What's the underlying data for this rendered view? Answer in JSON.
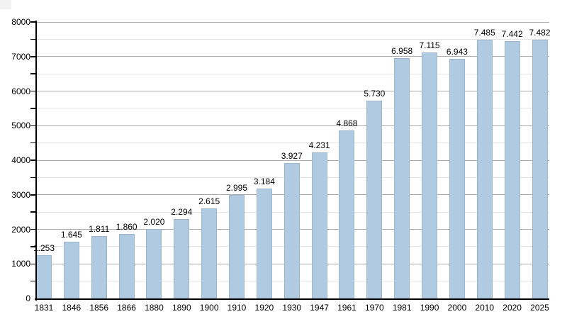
{
  "chart_data": {
    "type": "bar",
    "title": "",
    "xlabel": "",
    "ylabel": "",
    "categories": [
      "1831",
      "1846",
      "1856",
      "1866",
      "1880",
      "1890",
      "1900",
      "1910",
      "1920",
      "1930",
      "1947",
      "1961",
      "1970",
      "1981",
      "1990",
      "2000",
      "2010",
      "2020",
      "2025"
    ],
    "values": [
      1253,
      1645,
      1811,
      1860,
      2020,
      2294,
      2615,
      2995,
      3184,
      3927,
      4231,
      4868,
      5730,
      6958,
      7115,
      6943,
      7485,
      7442,
      7482
    ],
    "value_labels": [
      "1.253",
      "1.645",
      "1.811",
      "1.860",
      "2.020",
      "2.294",
      "2.615",
      "2.995",
      "3.184",
      "3.927",
      "4.231",
      "4.868",
      "5.730",
      "6.958",
      "7.115",
      "6.943",
      "7.485",
      "7.442",
      "7.482"
    ],
    "ylim": [
      0,
      8000
    ],
    "y_major_step": 1000,
    "y_minor_step": 500,
    "y_tick_labels": [
      "0",
      "1000",
      "2000",
      "3000",
      "4000",
      "5000",
      "6000",
      "7000",
      "8000"
    ],
    "grid": true,
    "legend": "none",
    "colors": {
      "bar_fill": "#b0cae2",
      "bar_border": "#9cb6d1",
      "grid_major": "#aaaaaa",
      "grid_minor": "#e4e4e4",
      "axis": "#000000",
      "text": "#000000",
      "background": "#ffffff"
    }
  }
}
